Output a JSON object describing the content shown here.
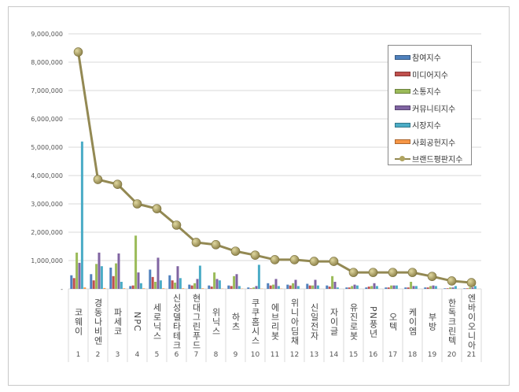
{
  "chart_data": {
    "type": "bar+line",
    "categories": [
      "코웨이",
      "경동나비엔",
      "파세코",
      "NPC",
      "세로닉스",
      "신성델타테크",
      "현대그린푸드",
      "위닉스",
      "하츠",
      "쿠쿠홈시스",
      "에브리봇",
      "위니아딤채",
      "신일전자",
      "자이글",
      "유진로봇",
      "PN풍년",
      "오텍",
      "케이엠",
      "부방",
      "한독크린텍",
      "엔바이오니아"
    ],
    "ranks": [
      "1",
      "2",
      "3",
      "4",
      "5",
      "6",
      "7",
      "8",
      "9",
      "10",
      "11",
      "12",
      "13",
      "14",
      "15",
      "16",
      "17",
      "18",
      "19",
      "20",
      "21"
    ],
    "ylim": [
      0,
      9000000
    ],
    "yticks": [
      0,
      1000000,
      2000000,
      3000000,
      4000000,
      5000000,
      6000000,
      7000000,
      8000000,
      9000000
    ],
    "ytick_labels": [
      "-",
      "1,000,000",
      "2,000,000",
      "3,000,000",
      "4,000,000",
      "5,000,000",
      "6,000,000",
      "7,000,000",
      "8,000,000",
      "9,000,000"
    ],
    "grid": true,
    "legend_position": "top-right",
    "series": [
      {
        "name": "참여지수",
        "kind": "bar",
        "color": "#4f81bd",
        "values": [
          480000,
          520000,
          750000,
          100000,
          680000,
          480000,
          150000,
          120000,
          120000,
          50000,
          200000,
          150000,
          180000,
          120000,
          50000,
          50000,
          50000,
          50000,
          50000,
          20000,
          20000
        ]
      },
      {
        "name": "미디어지수",
        "kind": "bar",
        "color": "#c0504d",
        "values": [
          380000,
          300000,
          450000,
          120000,
          420000,
          300000,
          120000,
          80000,
          100000,
          20000,
          120000,
          120000,
          120000,
          80000,
          50000,
          80000,
          50000,
          50000,
          50000,
          20000,
          20000
        ]
      },
      {
        "name": "소통지수",
        "kind": "bar",
        "color": "#9bbb59",
        "values": [
          1280000,
          880000,
          900000,
          1880000,
          250000,
          220000,
          200000,
          580000,
          450000,
          50000,
          150000,
          200000,
          120000,
          450000,
          100000,
          100000,
          120000,
          250000,
          100000,
          50000,
          50000
        ]
      },
      {
        "name": "커뮤니티지수",
        "kind": "bar",
        "color": "#8064a2",
        "values": [
          920000,
          1280000,
          1250000,
          580000,
          1100000,
          800000,
          350000,
          350000,
          520000,
          100000,
          350000,
          320000,
          320000,
          250000,
          150000,
          200000,
          120000,
          100000,
          120000,
          50000,
          50000
        ]
      },
      {
        "name": "시장지수",
        "kind": "bar",
        "color": "#4bacc6",
        "values": [
          5200000,
          800000,
          250000,
          200000,
          300000,
          380000,
          820000,
          300000,
          100000,
          850000,
          100000,
          100000,
          120000,
          50000,
          120000,
          100000,
          120000,
          100000,
          100000,
          100000,
          100000
        ]
      },
      {
        "name": "사회공헌지수",
        "kind": "bar",
        "color": "#f79646",
        "values": [
          50000,
          30000,
          20000,
          20000,
          20000,
          20000,
          20000,
          10000,
          10000,
          10000,
          10000,
          0,
          0,
          0,
          0,
          0,
          0,
          0,
          0,
          0,
          0
        ]
      },
      {
        "name": "브랜드평판지수",
        "kind": "line",
        "color": "#938953",
        "values": [
          8360000,
          3860000,
          3690000,
          3000000,
          2830000,
          2250000,
          1640000,
          1560000,
          1330000,
          1190000,
          1030000,
          1030000,
          970000,
          970000,
          580000,
          580000,
          580000,
          580000,
          440000,
          280000,
          220000
        ]
      }
    ]
  }
}
